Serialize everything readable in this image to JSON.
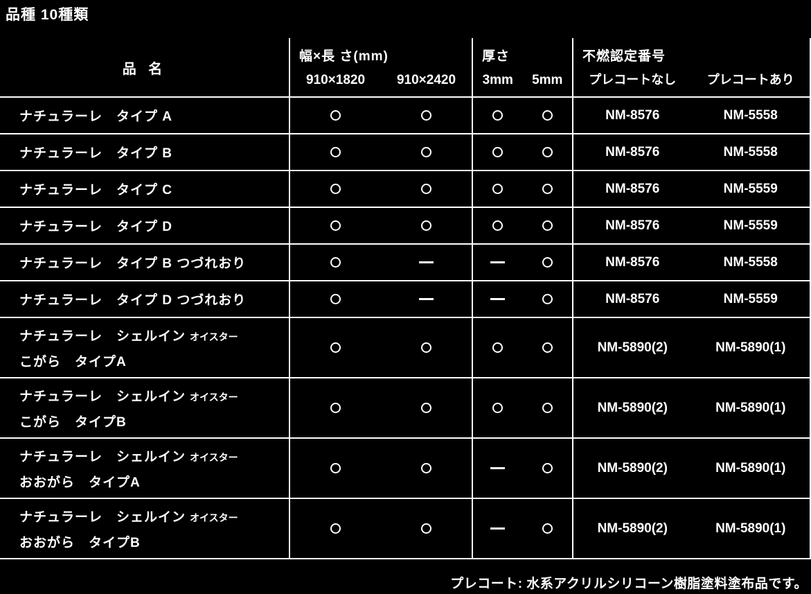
{
  "title": "品種 10種類",
  "colors": {
    "background": "#000000",
    "text": "#ffffff",
    "line": "#ffffff"
  },
  "footnote": "プレコート: 水系アクリルシリコーン樹脂塗料塗布品です。",
  "table": {
    "header": {
      "name": "品 名",
      "size_group": "幅×長 さ(mm)",
      "size_cols": [
        "910×1820",
        "910×2420"
      ],
      "thickness_group": "厚さ",
      "thickness_cols": [
        "3mm",
        "5mm"
      ],
      "cert_group": "不燃認定番号",
      "cert_cols": [
        "プレコートなし",
        "プレコートあり"
      ]
    },
    "symbols": {
      "available": "○",
      "not_available": "—"
    },
    "rows": [
      {
        "name_line1": "ナチュラーレ　タイプ A",
        "name_small": "",
        "name_line2": "",
        "size_910x1820": "available",
        "size_910x2420": "available",
        "thickness_3mm": "available",
        "thickness_5mm": "available",
        "cert_no_precoat": "NM-8576",
        "cert_precoat": "NM-5558"
      },
      {
        "name_line1": "ナチュラーレ　タイプ B",
        "name_small": "",
        "name_line2": "",
        "size_910x1820": "available",
        "size_910x2420": "available",
        "thickness_3mm": "available",
        "thickness_5mm": "available",
        "cert_no_precoat": "NM-8576",
        "cert_precoat": "NM-5558"
      },
      {
        "name_line1": "ナチュラーレ　タイプ C",
        "name_small": "",
        "name_line2": "",
        "size_910x1820": "available",
        "size_910x2420": "available",
        "thickness_3mm": "available",
        "thickness_5mm": "available",
        "cert_no_precoat": "NM-8576",
        "cert_precoat": "NM-5559"
      },
      {
        "name_line1": "ナチュラーレ　タイプ D",
        "name_small": "",
        "name_line2": "",
        "size_910x1820": "available",
        "size_910x2420": "available",
        "thickness_3mm": "available",
        "thickness_5mm": "available",
        "cert_no_precoat": "NM-8576",
        "cert_precoat": "NM-5559"
      },
      {
        "name_line1": "ナチュラーレ　タイプ B つづれおり",
        "name_small": "",
        "name_line2": "",
        "size_910x1820": "available",
        "size_910x2420": "not_available",
        "thickness_3mm": "not_available",
        "thickness_5mm": "available",
        "cert_no_precoat": "NM-8576",
        "cert_precoat": "NM-5558"
      },
      {
        "name_line1": "ナチュラーレ　タイプ D つづれおり",
        "name_small": "",
        "name_line2": "",
        "size_910x1820": "available",
        "size_910x2420": "not_available",
        "thickness_3mm": "not_available",
        "thickness_5mm": "available",
        "cert_no_precoat": "NM-8576",
        "cert_precoat": "NM-5559"
      },
      {
        "name_line1": "ナチュラーレ　シェルイン",
        "name_small": "オイスター",
        "name_line2": "こがら　タイプA",
        "size_910x1820": "available",
        "size_910x2420": "available",
        "thickness_3mm": "available",
        "thickness_5mm": "available",
        "cert_no_precoat": "NM-5890(2)",
        "cert_precoat": "NM-5890(1)"
      },
      {
        "name_line1": "ナチュラーレ　シェルイン",
        "name_small": "オイスター",
        "name_line2": "こがら　タイプB",
        "size_910x1820": "available",
        "size_910x2420": "available",
        "thickness_3mm": "available",
        "thickness_5mm": "available",
        "cert_no_precoat": "NM-5890(2)",
        "cert_precoat": "NM-5890(1)"
      },
      {
        "name_line1": "ナチュラーレ　シェルイン",
        "name_small": "オイスター",
        "name_line2": "おおがら　タイプA",
        "size_910x1820": "available",
        "size_910x2420": "available",
        "thickness_3mm": "not_available",
        "thickness_5mm": "available",
        "cert_no_precoat": "NM-5890(2)",
        "cert_precoat": "NM-5890(1)"
      },
      {
        "name_line1": "ナチュラーレ　シェルイン",
        "name_small": "オイスター",
        "name_line2": "おおがら　タイプB",
        "size_910x1820": "available",
        "size_910x2420": "available",
        "thickness_3mm": "not_available",
        "thickness_5mm": "available",
        "cert_no_precoat": "NM-5890(2)",
        "cert_precoat": "NM-5890(1)"
      }
    ]
  }
}
